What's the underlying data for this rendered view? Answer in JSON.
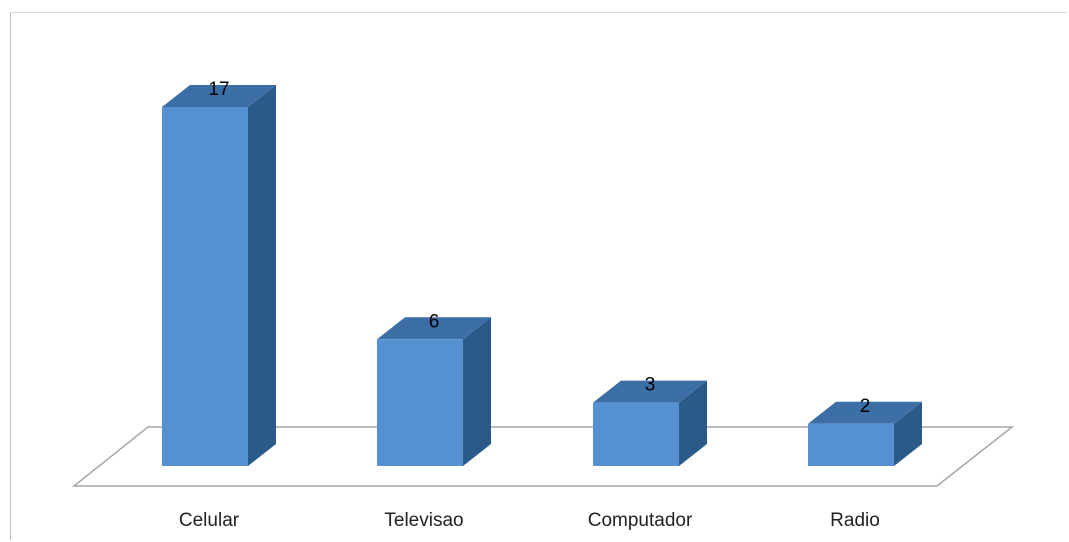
{
  "chart_data": {
    "type": "bar",
    "style": "3d-column",
    "categories": [
      "Celular",
      "Televisao",
      "Computador",
      "Radio"
    ],
    "values": [
      17,
      6,
      3,
      2
    ],
    "data_labels": [
      "17",
      "6",
      "3",
      "2"
    ],
    "title": "",
    "xlabel": "",
    "ylabel": "",
    "ylim": [
      0,
      17
    ],
    "grid": false,
    "legend": "none",
    "colors": {
      "front": "#5591d0",
      "top": "#3c6fa5",
      "side": "#2a5a87",
      "floor_stroke": "#a6a6a6",
      "edge": "#2f5c8a"
    }
  }
}
